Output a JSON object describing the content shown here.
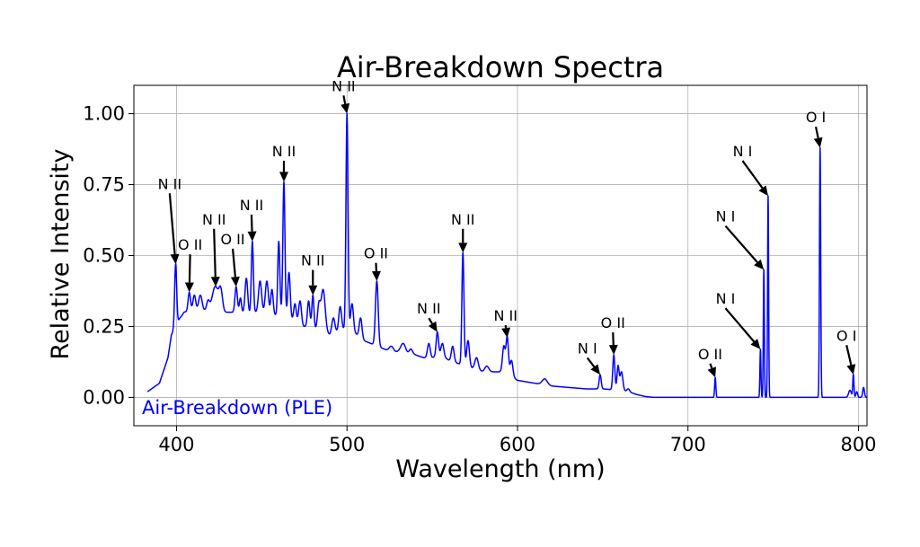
{
  "chart_data": {
    "type": "line",
    "title": "Air-Breakdown Spectra",
    "xlabel": "Wavelength (nm)",
    "ylabel": "Relative Intensity",
    "xlim": [
      375,
      805
    ],
    "ylim": [
      -0.1,
      1.1
    ],
    "xticks": [
      400,
      500,
      600,
      700,
      800
    ],
    "xtick_labels": [
      "400",
      "500",
      "600",
      "700",
      "800"
    ],
    "yticks": [
      0.0,
      0.25,
      0.5,
      0.75,
      1.0
    ],
    "ytick_labels": [
      "0.00",
      "0.25",
      "0.50",
      "0.75",
      "1.00"
    ],
    "grid": true,
    "legend_position": "bottom-left",
    "series": [
      {
        "name": "Air-Breakdown (PLE)",
        "color": "#0000ff",
        "baseline": [
          [
            383,
            0.02
          ],
          [
            390,
            0.05
          ],
          [
            395,
            0.14
          ],
          [
            397,
            0.22
          ],
          [
            402,
            0.28
          ],
          [
            406,
            0.3
          ],
          [
            410,
            0.31
          ],
          [
            414,
            0.3
          ],
          [
            418,
            0.31
          ],
          [
            422,
            0.32
          ],
          [
            426,
            0.3
          ],
          [
            430,
            0.3
          ],
          [
            434,
            0.3
          ],
          [
            438,
            0.3
          ],
          [
            442,
            0.29
          ],
          [
            446,
            0.3
          ],
          [
            450,
            0.3
          ],
          [
            454,
            0.29
          ],
          [
            458,
            0.29
          ],
          [
            462,
            0.3
          ],
          [
            466,
            0.28
          ],
          [
            470,
            0.27
          ],
          [
            474,
            0.25
          ],
          [
            478,
            0.25
          ],
          [
            482,
            0.24
          ],
          [
            486,
            0.23
          ],
          [
            490,
            0.22
          ],
          [
            494,
            0.23
          ],
          [
            498,
            0.24
          ],
          [
            502,
            0.24
          ],
          [
            506,
            0.22
          ],
          [
            510,
            0.2
          ],
          [
            514,
            0.19
          ],
          [
            518,
            0.18
          ],
          [
            522,
            0.17
          ],
          [
            526,
            0.16
          ],
          [
            530,
            0.16
          ],
          [
            535,
            0.15
          ],
          [
            540,
            0.15
          ],
          [
            545,
            0.14
          ],
          [
            550,
            0.14
          ],
          [
            555,
            0.15
          ],
          [
            560,
            0.13
          ],
          [
            565,
            0.12
          ],
          [
            570,
            0.11
          ],
          [
            575,
            0.1
          ],
          [
            580,
            0.09
          ],
          [
            585,
            0.09
          ],
          [
            590,
            0.09
          ],
          [
            595,
            0.08
          ],
          [
            600,
            0.06
          ],
          [
            610,
            0.05
          ],
          [
            620,
            0.04
          ],
          [
            630,
            0.035
          ],
          [
            640,
            0.03
          ],
          [
            650,
            0.03
          ],
          [
            660,
            0.025
          ],
          [
            665,
            0.02
          ],
          [
            670,
            0.01
          ],
          [
            675,
            0.003
          ],
          [
            680,
            0.0
          ],
          [
            805,
            0.0
          ]
        ],
        "peaks": [
          [
            399.5,
            0.47,
            0.6
          ],
          [
            404.5,
            0.3,
            0.9
          ],
          [
            407.5,
            0.37,
            0.7
          ],
          [
            410.5,
            0.36,
            0.8
          ],
          [
            414,
            0.36,
            1.0
          ],
          [
            418.5,
            0.34,
            0.8
          ],
          [
            423,
            0.39,
            1.8
          ],
          [
            426,
            0.37,
            1.0
          ],
          [
            435,
            0.39,
            0.7
          ],
          [
            437.5,
            0.35,
            0.6
          ],
          [
            441,
            0.42,
            0.8
          ],
          [
            444.5,
            0.55,
            0.6
          ],
          [
            449,
            0.41,
            0.9
          ],
          [
            453,
            0.41,
            0.9
          ],
          [
            456,
            0.38,
            0.7
          ],
          [
            460,
            0.55,
            0.6
          ],
          [
            463,
            0.76,
            0.6
          ],
          [
            466,
            0.44,
            0.7
          ],
          [
            469.5,
            0.33,
            0.7
          ],
          [
            472.5,
            0.34,
            0.8
          ],
          [
            477.5,
            0.34,
            0.7
          ],
          [
            480,
            0.36,
            0.6
          ],
          [
            483.5,
            0.32,
            0.8
          ],
          [
            486,
            0.38,
            1.2
          ],
          [
            492,
            0.28,
            0.9
          ],
          [
            496,
            0.32,
            0.8
          ],
          [
            500,
            1.0,
            0.6
          ],
          [
            503,
            0.33,
            0.8
          ],
          [
            508,
            0.28,
            0.8
          ],
          [
            517.5,
            0.41,
            0.8
          ],
          [
            526,
            0.18,
            1.2
          ],
          [
            533,
            0.19,
            1.5
          ],
          [
            537.5,
            0.17,
            1.0
          ],
          [
            548,
            0.19,
            0.8
          ],
          [
            553,
            0.23,
            0.7
          ],
          [
            556,
            0.19,
            0.8
          ],
          [
            562,
            0.18,
            0.8
          ],
          [
            568,
            0.51,
            0.6
          ],
          [
            571,
            0.2,
            0.8
          ],
          [
            576,
            0.14,
            1.0
          ],
          [
            582,
            0.11,
            1.2
          ],
          [
            592,
            0.18,
            0.8
          ],
          [
            594,
            0.21,
            0.7
          ],
          [
            596.5,
            0.13,
            0.8
          ],
          [
            616,
            0.065,
            1.5
          ],
          [
            648.5,
            0.08,
            0.6
          ],
          [
            656.5,
            0.15,
            0.6
          ],
          [
            659,
            0.11,
            0.6
          ],
          [
            661,
            0.09,
            0.8
          ],
          [
            665,
            0.03,
            0.8
          ],
          [
            716,
            0.07,
            0.35
          ],
          [
            742.5,
            0.17,
            0.3
          ],
          [
            744.5,
            0.45,
            0.3
          ],
          [
            747,
            0.71,
            0.3
          ],
          [
            777.5,
            0.88,
            0.35
          ],
          [
            795,
            0.025,
            0.8
          ],
          [
            797,
            0.08,
            0.35
          ],
          [
            799,
            0.02,
            0.5
          ],
          [
            803,
            0.035,
            0.5
          ]
        ]
      }
    ],
    "annotations": [
      {
        "label": "N II",
        "x": 399.5,
        "y": 0.47,
        "text_x": 396,
        "text_y": 0.735
      },
      {
        "label": "O II",
        "x": 407.5,
        "y": 0.37,
        "text_x": 408,
        "text_y": 0.52
      },
      {
        "label": "N II",
        "x": 423,
        "y": 0.39,
        "text_x": 422,
        "text_y": 0.61
      },
      {
        "label": "O II",
        "x": 435,
        "y": 0.39,
        "text_x": 433,
        "text_y": 0.54
      },
      {
        "label": "N II",
        "x": 444.5,
        "y": 0.55,
        "text_x": 444,
        "text_y": 0.66
      },
      {
        "label": "N II",
        "x": 463,
        "y": 0.76,
        "text_x": 463,
        "text_y": 0.85
      },
      {
        "label": "N II",
        "x": 480,
        "y": 0.36,
        "text_x": 480,
        "text_y": 0.465
      },
      {
        "label": "N II",
        "x": 500,
        "y": 1.0,
        "text_x": 498,
        "text_y": 1.08
      },
      {
        "label": "O II",
        "x": 517.5,
        "y": 0.41,
        "text_x": 517,
        "text_y": 0.49
      },
      {
        "label": "N II",
        "x": 553,
        "y": 0.23,
        "text_x": 548,
        "text_y": 0.295
      },
      {
        "label": "N II",
        "x": 568,
        "y": 0.51,
        "text_x": 568,
        "text_y": 0.61
      },
      {
        "label": "N II",
        "x": 594,
        "y": 0.21,
        "text_x": 593,
        "text_y": 0.27
      },
      {
        "label": "N I",
        "x": 648.5,
        "y": 0.08,
        "text_x": 641,
        "text_y": 0.155
      },
      {
        "label": "O II",
        "x": 656.5,
        "y": 0.15,
        "text_x": 656,
        "text_y": 0.245
      },
      {
        "label": "O II",
        "x": 716,
        "y": 0.07,
        "text_x": 713,
        "text_y": 0.135
      },
      {
        "label": "N I",
        "x": 742.5,
        "y": 0.17,
        "text_x": 722,
        "text_y": 0.33
      },
      {
        "label": "N I",
        "x": 744.5,
        "y": 0.45,
        "text_x": 722,
        "text_y": 0.62
      },
      {
        "label": "N I",
        "x": 747,
        "y": 0.71,
        "text_x": 732,
        "text_y": 0.85
      },
      {
        "label": "O I",
        "x": 777.5,
        "y": 0.88,
        "text_x": 775,
        "text_y": 0.97
      },
      {
        "label": "O I",
        "x": 797,
        "y": 0.08,
        "text_x": 793,
        "text_y": 0.2
      }
    ]
  }
}
